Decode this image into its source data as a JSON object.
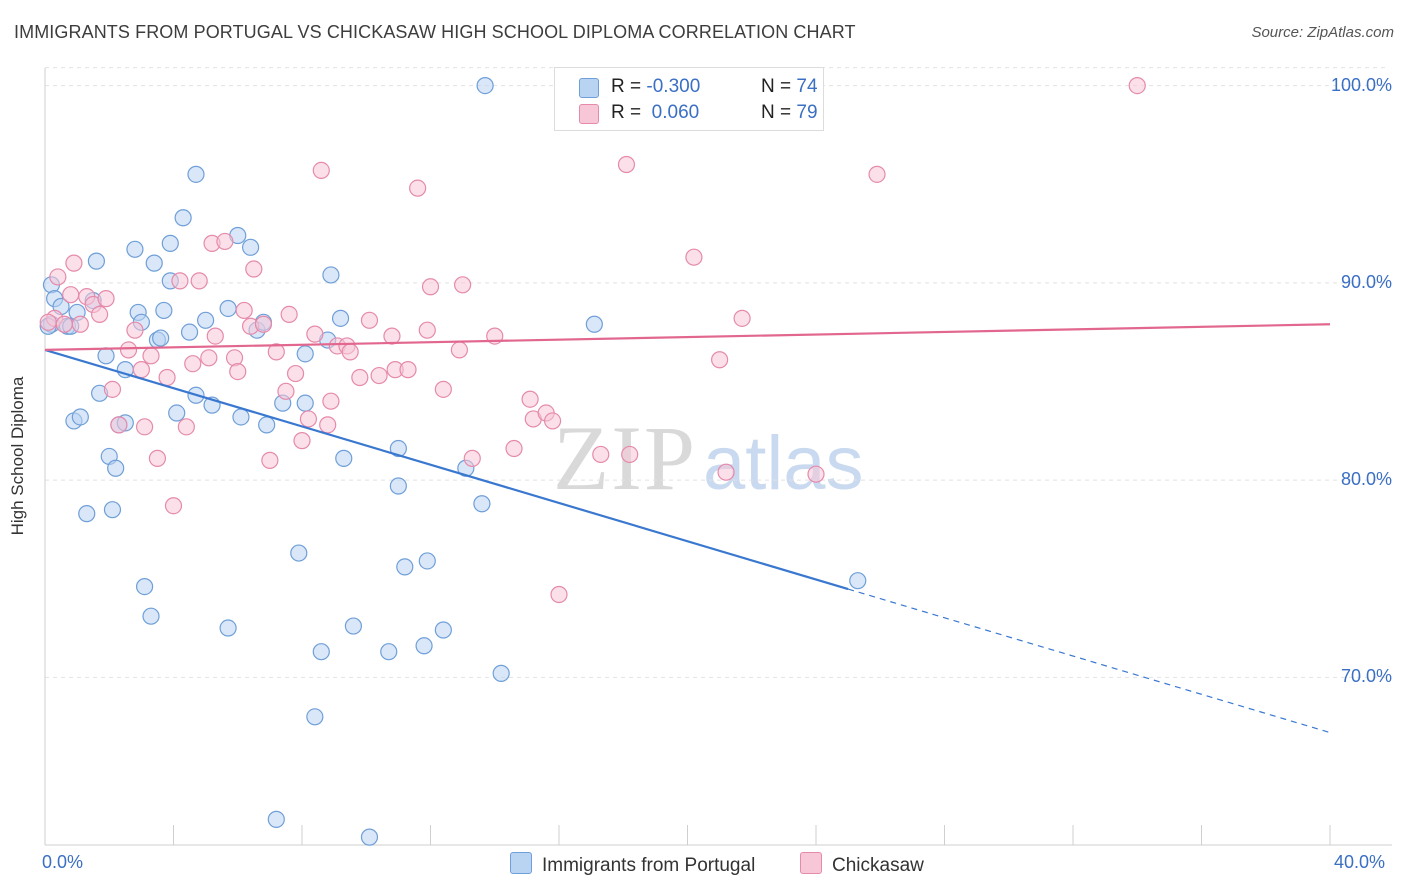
{
  "title": "IMMIGRANTS FROM PORTUGAL VS CHICKASAW HIGH SCHOOL DIPLOMA CORRELATION CHART",
  "source": "Source: ZipAtlas.com",
  "watermark": {
    "zip": "ZIP",
    "atlas": "atlas"
  },
  "legend": {
    "rows": [
      {
        "r_label": "R =",
        "r_value": "-0.300",
        "n_label": "N =",
        "n_value": "74"
      },
      {
        "r_label": "R =",
        "r_value": "0.060",
        "n_label": "N =",
        "n_value": "79"
      }
    ]
  },
  "bottom_legend": [
    "Immigrants from Portugal",
    "Chickasaw"
  ],
  "colors": {
    "blue_fill": "#b9d3f3",
    "blue_stroke": "#6f9fd8",
    "blue_line": "#3a78d0",
    "pink_fill": "#f7c6d7",
    "pink_stroke": "#e58aab",
    "pink_line": "#e2678f",
    "tick_text": "#3a6fc4",
    "grid": "#e2e2e2"
  },
  "chart_data": {
    "type": "scatter",
    "xlabel": "",
    "ylabel": "High School Diploma",
    "xlim": [
      0,
      40
    ],
    "ylim": [
      61.5,
      101.5
    ],
    "x_ticks": [
      "0.0%",
      "40.0%"
    ],
    "y_ticks": [
      {
        "value": 70,
        "label": "70.0%"
      },
      {
        "value": 80,
        "label": "80.0%"
      },
      {
        "value": 90,
        "label": "90.0%"
      },
      {
        "value": 100,
        "label": "100.0%"
      }
    ],
    "grid": true,
    "legend_position": "top-center",
    "series": [
      {
        "name": "Immigrants from Portugal",
        "trend": {
          "x0": 0,
          "y0": 86.6,
          "x1": 40,
          "y1": 67.2,
          "solid_until": 25
        },
        "points": [
          [
            0.2,
            87.9
          ],
          [
            0.2,
            89.9
          ],
          [
            0.3,
            89.2
          ],
          [
            0.5,
            88.8
          ],
          [
            0.7,
            87.8
          ],
          [
            0.8,
            87.8
          ],
          [
            1.0,
            88.5
          ],
          [
            1.5,
            89.1
          ],
          [
            1.6,
            91.1
          ],
          [
            1.7,
            84.4
          ],
          [
            0.9,
            83.0
          ],
          [
            1.1,
            83.2
          ],
          [
            1.9,
            86.3
          ],
          [
            2.0,
            81.2
          ],
          [
            1.3,
            78.3
          ],
          [
            2.1,
            78.5
          ],
          [
            2.2,
            80.6
          ],
          [
            2.3,
            82.8
          ],
          [
            2.5,
            82.9
          ],
          [
            2.5,
            85.6
          ],
          [
            2.8,
            91.7
          ],
          [
            2.9,
            88.5
          ],
          [
            3.0,
            88.0
          ],
          [
            3.1,
            74.6
          ],
          [
            3.3,
            73.1
          ],
          [
            3.4,
            91.0
          ],
          [
            3.5,
            87.1
          ],
          [
            3.6,
            87.2
          ],
          [
            3.7,
            88.6
          ],
          [
            3.9,
            90.1
          ],
          [
            3.9,
            92.0
          ],
          [
            4.1,
            83.4
          ],
          [
            4.3,
            93.3
          ],
          [
            4.5,
            87.5
          ],
          [
            4.7,
            84.3
          ],
          [
            4.7,
            95.5
          ],
          [
            5.0,
            88.1
          ],
          [
            5.2,
            83.8
          ],
          [
            5.7,
            72.5
          ],
          [
            5.7,
            88.7
          ],
          [
            6.0,
            92.4
          ],
          [
            6.1,
            83.2
          ],
          [
            6.4,
            91.8
          ],
          [
            6.6,
            87.6
          ],
          [
            6.8,
            88.0
          ],
          [
            6.9,
            82.8
          ],
          [
            7.2,
            62.8
          ],
          [
            7.4,
            83.9
          ],
          [
            7.9,
            76.3
          ],
          [
            8.1,
            83.9
          ],
          [
            8.1,
            86.4
          ],
          [
            8.4,
            68.0
          ],
          [
            8.6,
            71.3
          ],
          [
            8.8,
            87.1
          ],
          [
            8.9,
            90.4
          ],
          [
            9.2,
            88.2
          ],
          [
            9.3,
            81.1
          ],
          [
            9.6,
            72.6
          ],
          [
            10.1,
            61.9
          ],
          [
            10.7,
            71.3
          ],
          [
            11.0,
            79.7
          ],
          [
            11.0,
            81.6
          ],
          [
            11.2,
            75.6
          ],
          [
            11.8,
            71.6
          ],
          [
            11.9,
            75.9
          ],
          [
            12.4,
            72.4
          ],
          [
            13.1,
            80.6
          ],
          [
            13.6,
            78.8
          ],
          [
            13.7,
            100.0
          ],
          [
            14.2,
            70.2
          ],
          [
            16.5,
            100.0
          ],
          [
            17.1,
            87.9
          ],
          [
            25.3,
            74.9
          ],
          [
            0.1,
            87.8
          ]
        ]
      },
      {
        "name": "Chickasaw",
        "trend": {
          "x0": 0,
          "y0": 86.6,
          "x1": 40,
          "y1": 87.9
        },
        "points": [
          [
            0.3,
            88.2
          ],
          [
            0.4,
            90.3
          ],
          [
            0.6,
            87.9
          ],
          [
            0.8,
            89.4
          ],
          [
            0.9,
            91.0
          ],
          [
            1.1,
            87.9
          ],
          [
            1.3,
            89.3
          ],
          [
            1.5,
            88.9
          ],
          [
            1.7,
            88.4
          ],
          [
            1.9,
            89.2
          ],
          [
            2.1,
            84.6
          ],
          [
            2.3,
            82.8
          ],
          [
            2.6,
            86.6
          ],
          [
            2.8,
            87.6
          ],
          [
            3.0,
            85.6
          ],
          [
            3.1,
            82.7
          ],
          [
            3.3,
            86.3
          ],
          [
            3.5,
            81.1
          ],
          [
            3.8,
            85.2
          ],
          [
            4.0,
            78.7
          ],
          [
            4.2,
            90.1
          ],
          [
            4.4,
            82.7
          ],
          [
            4.6,
            85.9
          ],
          [
            4.8,
            90.1
          ],
          [
            5.1,
            86.2
          ],
          [
            5.2,
            92.0
          ],
          [
            5.3,
            87.3
          ],
          [
            5.6,
            92.1
          ],
          [
            5.9,
            86.2
          ],
          [
            6.0,
            85.5
          ],
          [
            6.2,
            88.6
          ],
          [
            6.4,
            87.8
          ],
          [
            6.5,
            90.7
          ],
          [
            6.8,
            87.9
          ],
          [
            7.0,
            81.0
          ],
          [
            7.2,
            86.5
          ],
          [
            7.5,
            84.5
          ],
          [
            7.6,
            88.4
          ],
          [
            7.8,
            85.4
          ],
          [
            8.0,
            82.0
          ],
          [
            8.2,
            83.1
          ],
          [
            8.4,
            87.4
          ],
          [
            8.6,
            95.7
          ],
          [
            8.8,
            82.8
          ],
          [
            8.9,
            84.0
          ],
          [
            9.1,
            86.8
          ],
          [
            9.4,
            86.8
          ],
          [
            9.5,
            86.5
          ],
          [
            9.8,
            85.2
          ],
          [
            10.1,
            88.1
          ],
          [
            10.4,
            85.3
          ],
          [
            10.8,
            87.3
          ],
          [
            10.9,
            85.6
          ],
          [
            11.3,
            85.6
          ],
          [
            11.6,
            94.8
          ],
          [
            11.9,
            87.6
          ],
          [
            12.0,
            89.8
          ],
          [
            12.4,
            84.6
          ],
          [
            12.9,
            86.6
          ],
          [
            13.0,
            89.9
          ],
          [
            13.3,
            81.1
          ],
          [
            14.0,
            87.3
          ],
          [
            14.6,
            81.6
          ],
          [
            15.1,
            84.1
          ],
          [
            15.2,
            83.1
          ],
          [
            15.6,
            83.4
          ],
          [
            15.8,
            83.0
          ],
          [
            16.0,
            74.2
          ],
          [
            17.3,
            81.3
          ],
          [
            18.1,
            96.0
          ],
          [
            18.2,
            81.3
          ],
          [
            20.2,
            91.3
          ],
          [
            21.0,
            86.1
          ],
          [
            21.2,
            80.4
          ],
          [
            21.7,
            88.2
          ],
          [
            24.0,
            80.3
          ],
          [
            25.9,
            95.5
          ],
          [
            34.0,
            100.0
          ],
          [
            0.1,
            88.0
          ]
        ]
      }
    ]
  }
}
